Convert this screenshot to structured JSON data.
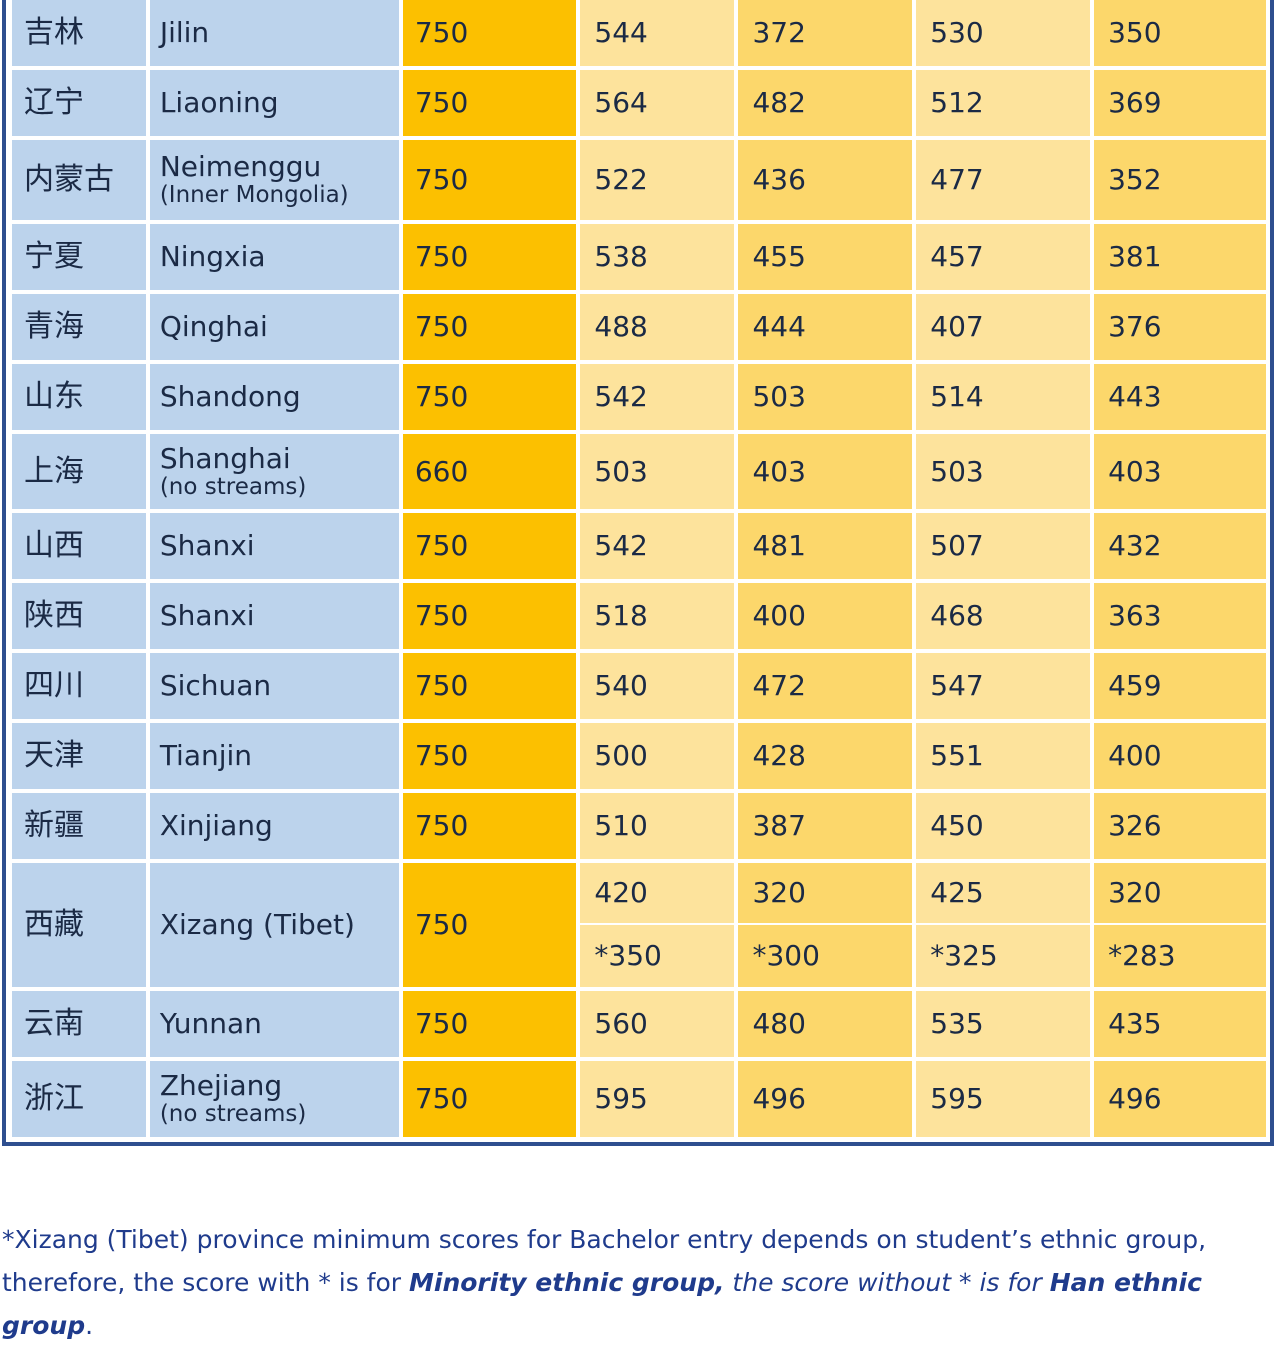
{
  "rows": [
    {
      "zh": "吉林",
      "en": "Jilin",
      "sub": "",
      "max": "750",
      "s": [
        "544",
        "372",
        "530",
        "350"
      ]
    },
    {
      "zh": "辽宁",
      "en": "Liaoning",
      "sub": "",
      "max": "750",
      "s": [
        "564",
        "482",
        "512",
        "369"
      ]
    },
    {
      "zh": "内蒙古",
      "en": "Neimenggu",
      "sub": "(Inner Mongolia)",
      "max": "750",
      "s": [
        "522",
        "436",
        "477",
        "352"
      ]
    },
    {
      "zh": "宁夏",
      "en": "Ningxia",
      "sub": "",
      "max": "750",
      "s": [
        "538",
        "455",
        "457",
        "381"
      ]
    },
    {
      "zh": "青海",
      "en": "Qinghai",
      "sub": "",
      "max": "750",
      "s": [
        "488",
        "444",
        "407",
        "376"
      ]
    },
    {
      "zh": "山东",
      "en": "Shandong",
      "sub": "",
      "max": "750",
      "s": [
        "542",
        "503",
        "514",
        "443"
      ]
    },
    {
      "zh": "上海",
      "en": "Shanghai",
      "sub": "(no streams)",
      "max": "660",
      "s": [
        "503",
        "403",
        "503",
        "403"
      ]
    },
    {
      "zh": "山西",
      "en": "Shanxi",
      "sub": "",
      "max": "750",
      "s": [
        "542",
        "481",
        "507",
        "432"
      ]
    },
    {
      "zh": "陕西",
      "en": "Shanxi",
      "sub": "",
      "max": "750",
      "s": [
        "518",
        "400",
        "468",
        "363"
      ]
    },
    {
      "zh": "四川",
      "en": "Sichuan",
      "sub": "",
      "max": "750",
      "s": [
        "540",
        "472",
        "547",
        "459"
      ]
    },
    {
      "zh": "天津",
      "en": "Tianjin",
      "sub": "",
      "max": "750",
      "s": [
        "500",
        "428",
        "551",
        "400"
      ]
    },
    {
      "zh": "新疆",
      "en": "Xinjiang",
      "sub": "",
      "max": "750",
      "s": [
        "510",
        "387",
        "450",
        "326"
      ]
    },
    {
      "zh": "西藏",
      "en": "Xizang (Tibet)",
      "sub": "",
      "max": "750",
      "s": [
        "420",
        "320",
        "425",
        "320"
      ],
      "s_minority": [
        "*350",
        "*300",
        "*325",
        "*283"
      ]
    },
    {
      "zh": "云南",
      "en": "Yunnan",
      "sub": "",
      "max": "750",
      "s": [
        "560",
        "480",
        "535",
        "435"
      ]
    },
    {
      "zh": "浙江",
      "en": "Zhejiang",
      "sub": "(no streams)",
      "max": "750",
      "s": [
        "595",
        "496",
        "595",
        "496"
      ]
    }
  ],
  "footnote": {
    "line1": "*Xizang (Tibet) province minimum scores for Bachelor entry depends on student’s ethnic group,",
    "line2_a": "therefore, the score with * is for ",
    "line2_b": "Minority ethnic group,",
    "line2_c": " the score without * is for ",
    "line2_d": "Han ethnic group",
    "line2_e": "."
  }
}
